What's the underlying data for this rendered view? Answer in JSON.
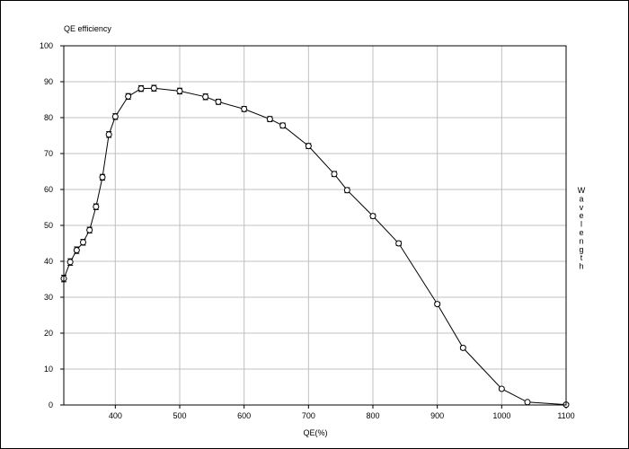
{
  "chart_data": {
    "type": "line",
    "title": "QE efficiency",
    "xlabel": "QE(%)",
    "ylabel": "Wavelength",
    "xlim": [
      320,
      1100
    ],
    "ylim": [
      0,
      100
    ],
    "xticks": [
      400,
      500,
      600,
      700,
      800,
      900,
      1000,
      1100
    ],
    "yticks": [
      0,
      10,
      20,
      30,
      40,
      50,
      60,
      70,
      80,
      90,
      100
    ],
    "grid": true,
    "legend": "none",
    "series": [
      {
        "x": [
          320,
          330,
          340,
          350,
          360,
          370,
          380,
          390,
          400,
          420,
          440,
          460,
          500,
          540,
          560,
          600,
          640,
          660,
          700,
          740,
          760,
          800,
          840,
          900,
          940,
          1000,
          1040,
          1100
        ],
        "y": [
          35.2,
          39.8,
          43.1,
          45.3,
          48.7,
          55.2,
          63.4,
          75.3,
          80.3,
          85.9,
          88.1,
          88.2,
          87.4,
          85.8,
          84.4,
          82.4,
          79.6,
          77.8,
          72.1,
          64.3,
          59.8,
          52.6,
          45.0,
          28.1,
          15.9,
          4.5,
          0.8,
          0.1
        ],
        "error": [
          0.9,
          0.9,
          0.9,
          0.8,
          0.8,
          0.8,
          0.8,
          0.8,
          0.8,
          0.8,
          0.8,
          0.8,
          0.8,
          0.8,
          0.7,
          0.7,
          0.7,
          0.7,
          0.7,
          0.7,
          0.7,
          0.6,
          0.6,
          0.5,
          0.5,
          0.4,
          0.3,
          0.2
        ]
      }
    ],
    "colors": {
      "line": "#000000",
      "grid": "#c0c0c0",
      "frame": "#000000",
      "marker_fill": "#ffffff"
    }
  }
}
